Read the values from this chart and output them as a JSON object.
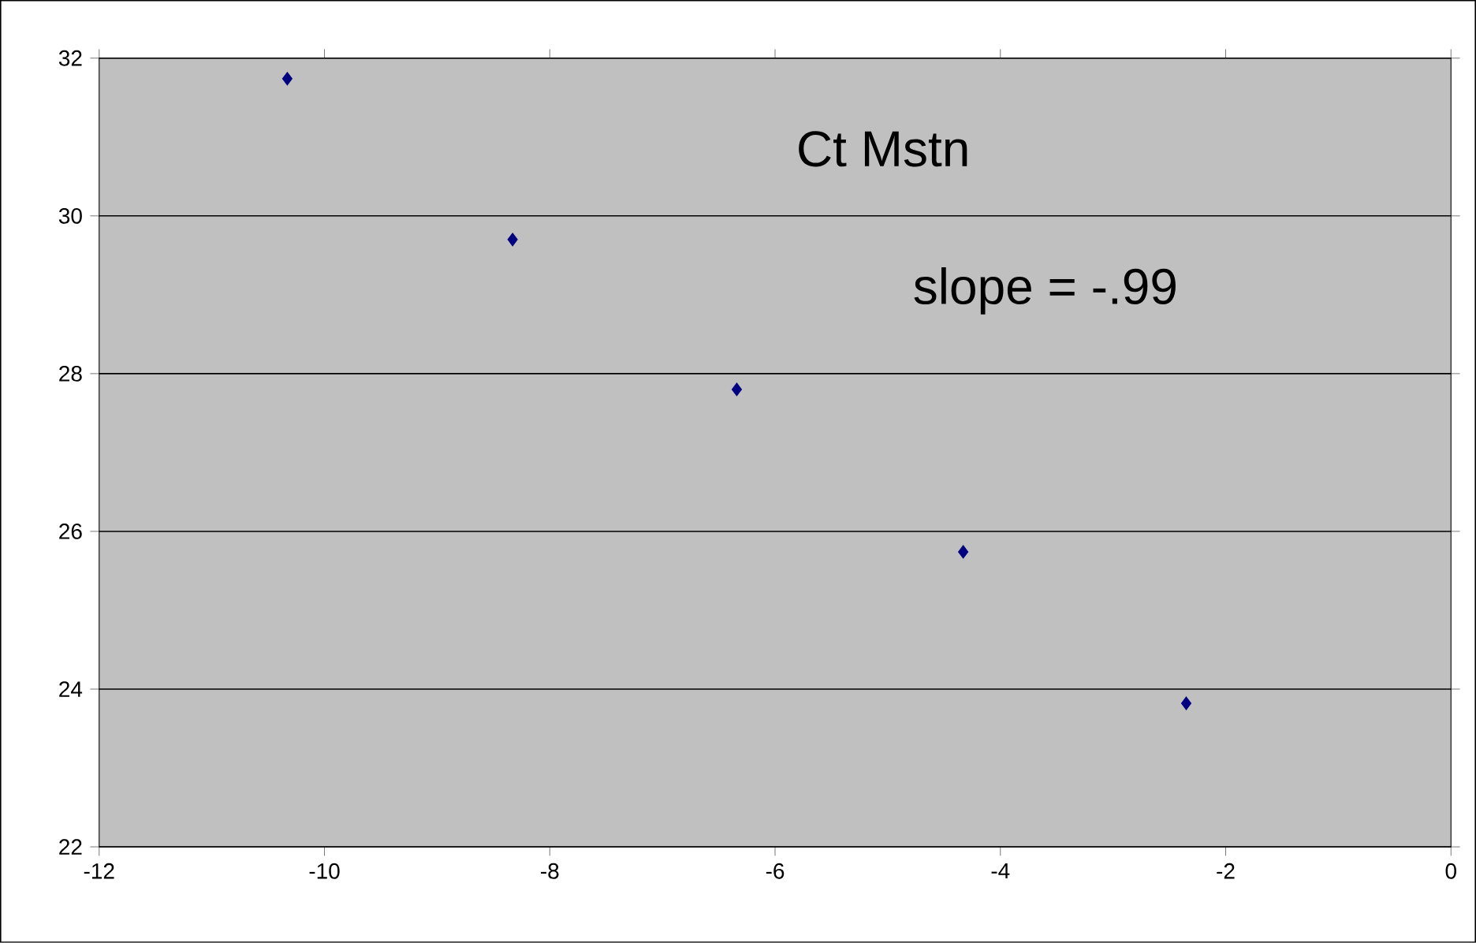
{
  "chart_data": {
    "type": "scatter",
    "x": [
      -10.33,
      -8.33,
      -6.34,
      -4.33,
      -2.35
    ],
    "values": [
      31.74,
      29.7,
      27.8,
      25.74,
      23.82
    ],
    "color": "#000080",
    "marker": "diamond",
    "xlim": [
      -12,
      0
    ],
    "ylim": [
      22,
      32
    ],
    "xticks": [
      -12,
      -10,
      -8,
      -6,
      -4,
      -2,
      0
    ],
    "yticks": [
      22,
      24,
      26,
      28,
      30,
      32
    ],
    "grid": "y",
    "annotations": [
      "Ct Mstn",
      "slope = -.99"
    ]
  }
}
